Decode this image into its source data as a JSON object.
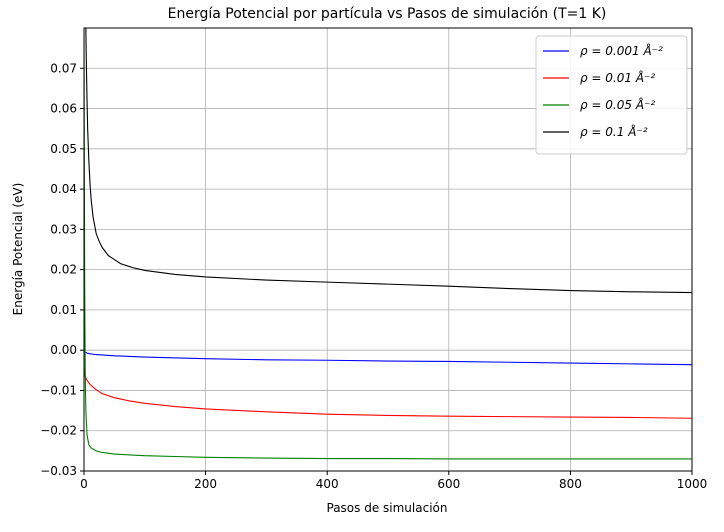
{
  "chart_data": {
    "type": "line",
    "title": "Energía Potencial por partícula vs Pasos de simulación (T=1 K)",
    "xlabel": "Pasos de simulación",
    "ylabel": "Energía Potencial (eV)",
    "xlim": [
      0,
      1000
    ],
    "ylim": [
      -0.03,
      0.08
    ],
    "xticks": [
      0,
      200,
      400,
      600,
      800,
      1000
    ],
    "xtick_labels": [
      "0",
      "200",
      "400",
      "600",
      "800",
      "1000"
    ],
    "yticks": [
      -0.03,
      -0.02,
      -0.01,
      0.0,
      0.01,
      0.02,
      0.03,
      0.04,
      0.05,
      0.06,
      0.07
    ],
    "ytick_labels": [
      "−0.03",
      "−0.02",
      "−0.01",
      "0.00",
      "0.01",
      "0.02",
      "0.03",
      "0.04",
      "0.05",
      "0.06",
      "0.07"
    ],
    "grid": true,
    "legend_position": "top-right",
    "series": [
      {
        "name": "ρ = 0.001 Å⁻²",
        "color": "#0000ff",
        "x": [
          0,
          2,
          5,
          10,
          20,
          50,
          100,
          200,
          300,
          400,
          500,
          600,
          700,
          800,
          900,
          1000
        ],
        "y": [
          -0.0003,
          -0.0005,
          -0.0007,
          -0.0009,
          -0.0011,
          -0.0014,
          -0.0017,
          -0.0021,
          -0.0024,
          -0.0025,
          -0.0027,
          -0.0028,
          -0.003,
          -0.0032,
          -0.0034,
          -0.0036
        ]
      },
      {
        "name": "ρ = 0.01 Å⁻²",
        "color": "#ff0000",
        "x": [
          0,
          2,
          5,
          10,
          20,
          30,
          50,
          75,
          100,
          150,
          200,
          300,
          400,
          500,
          600,
          700,
          800,
          900,
          1000
        ],
        "y": [
          -0.004,
          -0.0065,
          -0.0075,
          -0.0085,
          -0.0098,
          -0.0108,
          -0.0118,
          -0.0126,
          -0.0132,
          -0.014,
          -0.0146,
          -0.0153,
          -0.0159,
          -0.0162,
          -0.0164,
          -0.0165,
          -0.0166,
          -0.0167,
          -0.0169
        ]
      },
      {
        "name": "ρ = 0.05 Å⁻²",
        "color": "#008000",
        "x": [
          0,
          1,
          2,
          3,
          5,
          8,
          12,
          20,
          30,
          50,
          75,
          100,
          150,
          200,
          300,
          400,
          500,
          600,
          700,
          800,
          900,
          1000
        ],
        "y": [
          0.08,
          0.02,
          -0.005,
          -0.015,
          -0.021,
          -0.0235,
          -0.0243,
          -0.025,
          -0.0254,
          -0.0258,
          -0.026,
          -0.0262,
          -0.0264,
          -0.0266,
          -0.0268,
          -0.0269,
          -0.0269,
          -0.027,
          -0.027,
          -0.027,
          -0.027,
          -0.027
        ]
      },
      {
        "name": "ρ = 0.1 Å⁻²",
        "color": "#000000",
        "x": [
          3,
          4,
          5,
          6,
          8,
          10,
          12,
          15,
          20,
          25,
          30,
          40,
          50,
          60,
          80,
          100,
          150,
          200,
          300,
          400,
          500,
          600,
          700,
          800,
          900,
          1000
        ],
        "y": [
          0.08,
          0.07,
          0.062,
          0.055,
          0.047,
          0.041,
          0.037,
          0.033,
          0.029,
          0.027,
          0.0255,
          0.0235,
          0.0225,
          0.0215,
          0.0205,
          0.0198,
          0.0188,
          0.0182,
          0.0174,
          0.0169,
          0.0164,
          0.0159,
          0.0153,
          0.0148,
          0.0145,
          0.0143
        ]
      }
    ]
  }
}
